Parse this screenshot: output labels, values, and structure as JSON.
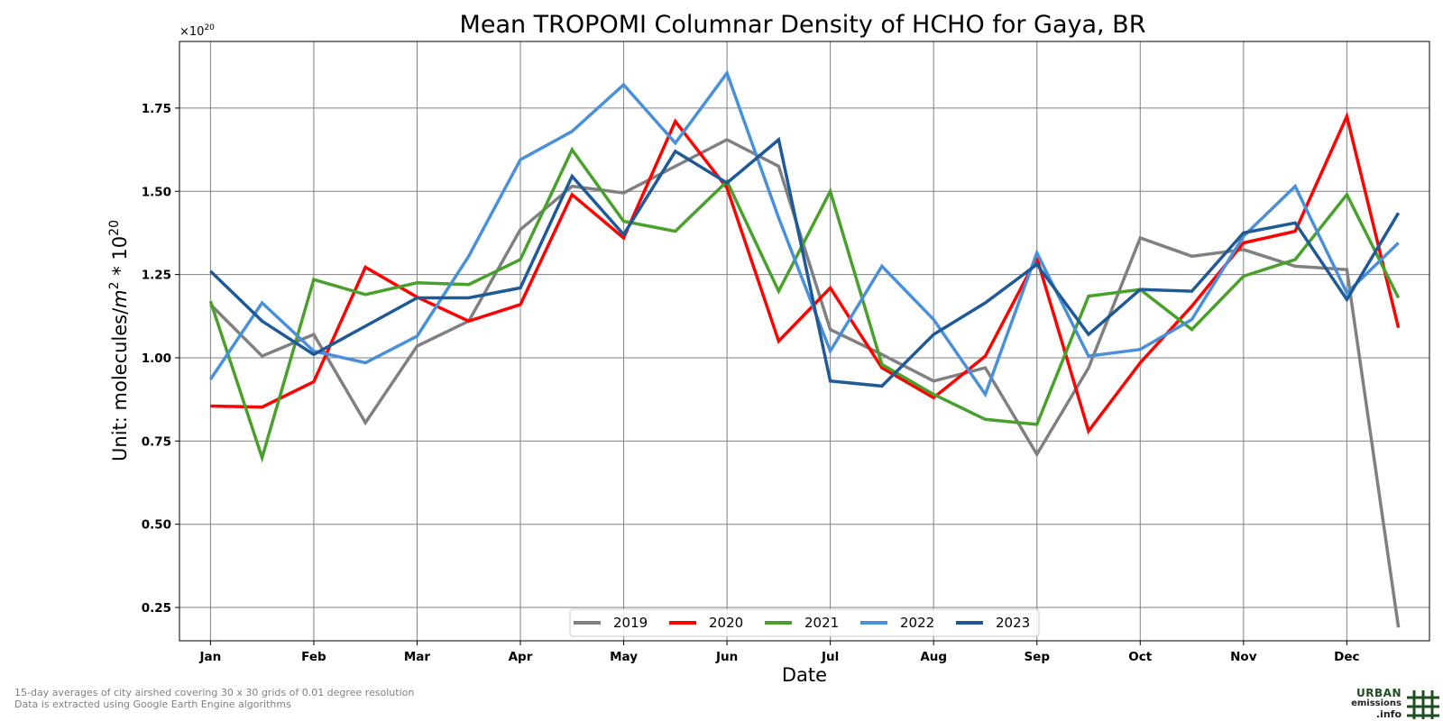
{
  "chart_data": {
    "type": "line",
    "title": "Mean TROPOMI Columnar Density of HCHO for Gaya, BR",
    "xlabel": "Date",
    "ylabel_main": "Unit: molecules/",
    "ylabel_m": "m",
    "ylabel_sup": "2",
    "ylabel_times": " * 10",
    "ylabel_sup2": "20",
    "y_exponent_base": "×10",
    "y_exponent_power": "20",
    "ylim": [
      0.15,
      1.95
    ],
    "x_period_range": [
      -0.6,
      23.6
    ],
    "y_ticks": [
      0.25,
      0.5,
      0.75,
      1.0,
      1.25,
      1.5,
      1.75
    ],
    "y_tick_labels": [
      "0.25",
      "0.50",
      "0.75",
      "1.00",
      "1.25",
      "1.50",
      "1.75"
    ],
    "x_tick_periods": [
      0,
      2,
      4,
      6,
      8,
      10,
      12,
      14,
      16,
      18,
      20,
      22
    ],
    "x_tick_labels": [
      "Jan",
      "Feb",
      "Mar",
      "Apr",
      "May",
      "Jun",
      "Jul",
      "Aug",
      "Sep",
      "Oct",
      "Nov",
      "Dec"
    ],
    "grid": true,
    "legend_position": "bottom-center",
    "series": [
      {
        "name": "2019",
        "color": "#808080",
        "values": [
          1.16,
          1.005,
          1.07,
          0.805,
          1.035,
          1.11,
          1.385,
          1.515,
          1.495,
          1.575,
          1.655,
          1.575,
          1.085,
          1.01,
          0.93,
          0.97,
          0.71,
          0.97,
          1.36,
          1.305,
          1.325,
          1.275,
          1.265,
          0.19
        ]
      },
      {
        "name": "2020",
        "color": "#ff0000",
        "values": [
          0.855,
          0.852,
          0.928,
          1.272,
          1.182,
          1.11,
          1.16,
          1.49,
          1.36,
          1.71,
          1.51,
          1.05,
          1.21,
          0.97,
          0.88,
          1.005,
          1.3,
          0.78,
          0.985,
          1.155,
          1.345,
          1.38,
          1.725,
          1.09
        ]
      },
      {
        "name": "2021",
        "color": "#4aa02c",
        "values": [
          1.17,
          0.7,
          1.235,
          1.19,
          1.225,
          1.22,
          1.295,
          1.625,
          1.41,
          1.38,
          1.53,
          1.2,
          1.5,
          0.98,
          0.89,
          0.815,
          0.8,
          1.185,
          1.205,
          1.085,
          1.245,
          1.295,
          1.49,
          1.18
        ]
      },
      {
        "name": "2022",
        "color": "#4a90d9",
        "values": [
          0.935,
          1.165,
          1.02,
          0.985,
          1.065,
          1.305,
          1.595,
          1.68,
          1.82,
          1.645,
          1.855,
          1.42,
          1.02,
          1.275,
          1.115,
          0.89,
          1.315,
          1.005,
          1.025,
          1.115,
          1.365,
          1.515,
          1.195,
          1.345
        ]
      },
      {
        "name": "2023",
        "color": "#1f5a96",
        "values": [
          1.26,
          1.11,
          1.01,
          1.095,
          1.18,
          1.18,
          1.21,
          1.545,
          1.37,
          1.62,
          1.525,
          1.655,
          0.93,
          0.915,
          1.07,
          1.165,
          1.28,
          1.07,
          1.205,
          1.2,
          1.375,
          1.405,
          1.175,
          1.435
        ]
      }
    ]
  },
  "footer": {
    "line1": "15-day averages of city airshed covering 30 x 30 grids of 0.01 degree resolution",
    "line2": "Data is extracted using Google Earth Engine algorithms"
  },
  "logo": {
    "line1": "URBAN",
    "line2": "emissions",
    "line3": ".info"
  }
}
